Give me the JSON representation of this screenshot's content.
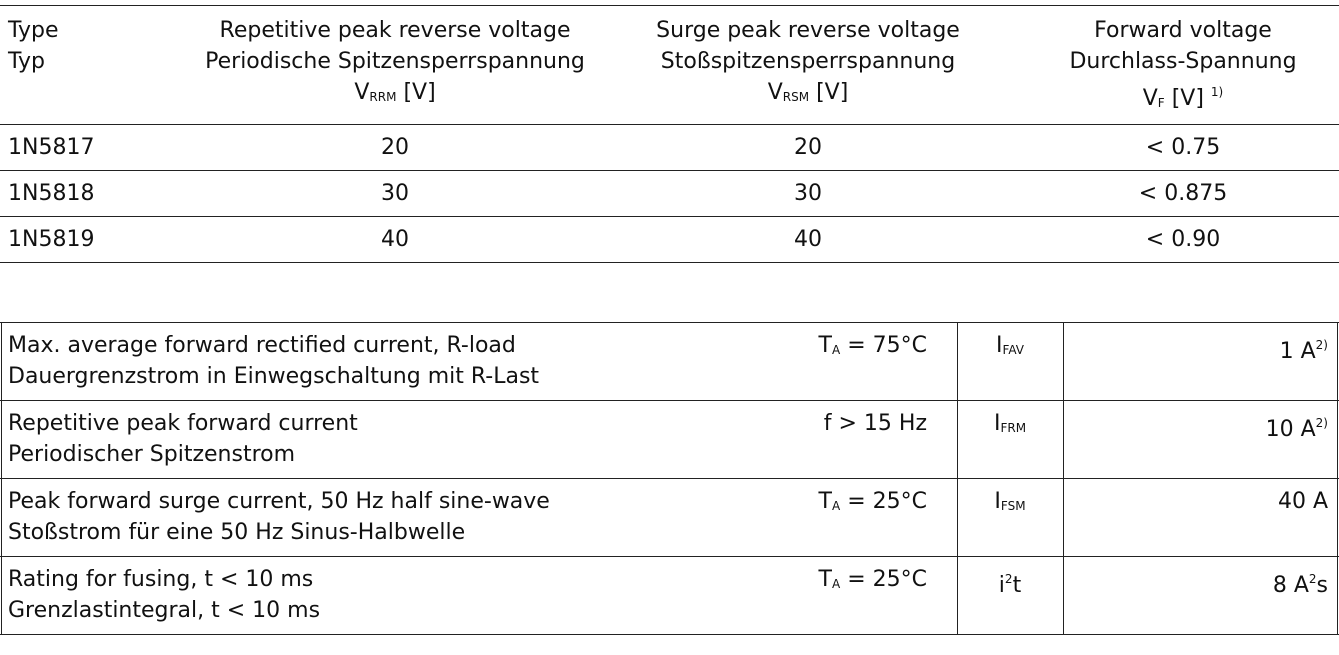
{
  "table1": {
    "header": [
      {
        "lines": [
          "Type",
          "Typ"
        ]
      },
      {
        "lines": [
          "Repetitive peak reverse voltage",
          "Periodische Spitzensperrspannung"
        ],
        "symbol": "V",
        "sub": "RRM",
        "unit": "[V]"
      },
      {
        "lines": [
          "Surge peak reverse voltage",
          "Stoßspitzensperrspannung"
        ],
        "symbol": "V",
        "sub": "RSM",
        "unit": "[V]"
      },
      {
        "lines": [
          "Forward voltage",
          "Durchlass-Spannung"
        ],
        "symbol": "V",
        "sub": "F",
        "unit": "[V]",
        "note": "1)"
      }
    ],
    "rows": [
      [
        "1N5817",
        20,
        20,
        "< 0.75"
      ],
      [
        "1N5818",
        30,
        30,
        "< 0.875"
      ],
      [
        "1N5819",
        40,
        40,
        "< 0.90"
      ]
    ]
  },
  "table2": {
    "rows": [
      {
        "lines": [
          "Max. average forward rectified current, R-load",
          "Dauergrenzstrom in Einwegschaltung mit R-Last"
        ],
        "condition": {
          "symbol": "T",
          "sub": "A",
          "text": "= 75°C"
        },
        "quantity": {
          "symbol": "I",
          "sub": "FAV"
        },
        "value": {
          "text": "1 A",
          "sup": "2)"
        }
      },
      {
        "lines": [
          "Repetitive peak forward current",
          "Periodischer Spitzenstrom"
        ],
        "condition": {
          "text": "f > 15 Hz"
        },
        "quantity": {
          "symbol": "I",
          "sub": "FRM"
        },
        "value": {
          "text": "10 A",
          "sup": "2)"
        }
      },
      {
        "lines": [
          "Peak forward surge current, 50 Hz half sine-wave",
          "Stoßstrom für eine 50 Hz Sinus-Halbwelle"
        ],
        "condition": {
          "symbol": "T",
          "sub": "A",
          "text": "= 25°C"
        },
        "quantity": {
          "symbol": "I",
          "sub": "FSM"
        },
        "value": {
          "text": "40 A"
        }
      },
      {
        "lines": [
          "Rating for fusing, t < 10 ms",
          "Grenzlastintegral, t < 10 ms"
        ],
        "condition": {
          "symbol": "T",
          "sub": "A",
          "text": "= 25°C"
        },
        "quantity": {
          "symbol": "i",
          "sup": "2",
          "after": "t"
        },
        "value": {
          "text": "8 A",
          "sup": "2",
          "after": "s"
        }
      }
    ]
  }
}
